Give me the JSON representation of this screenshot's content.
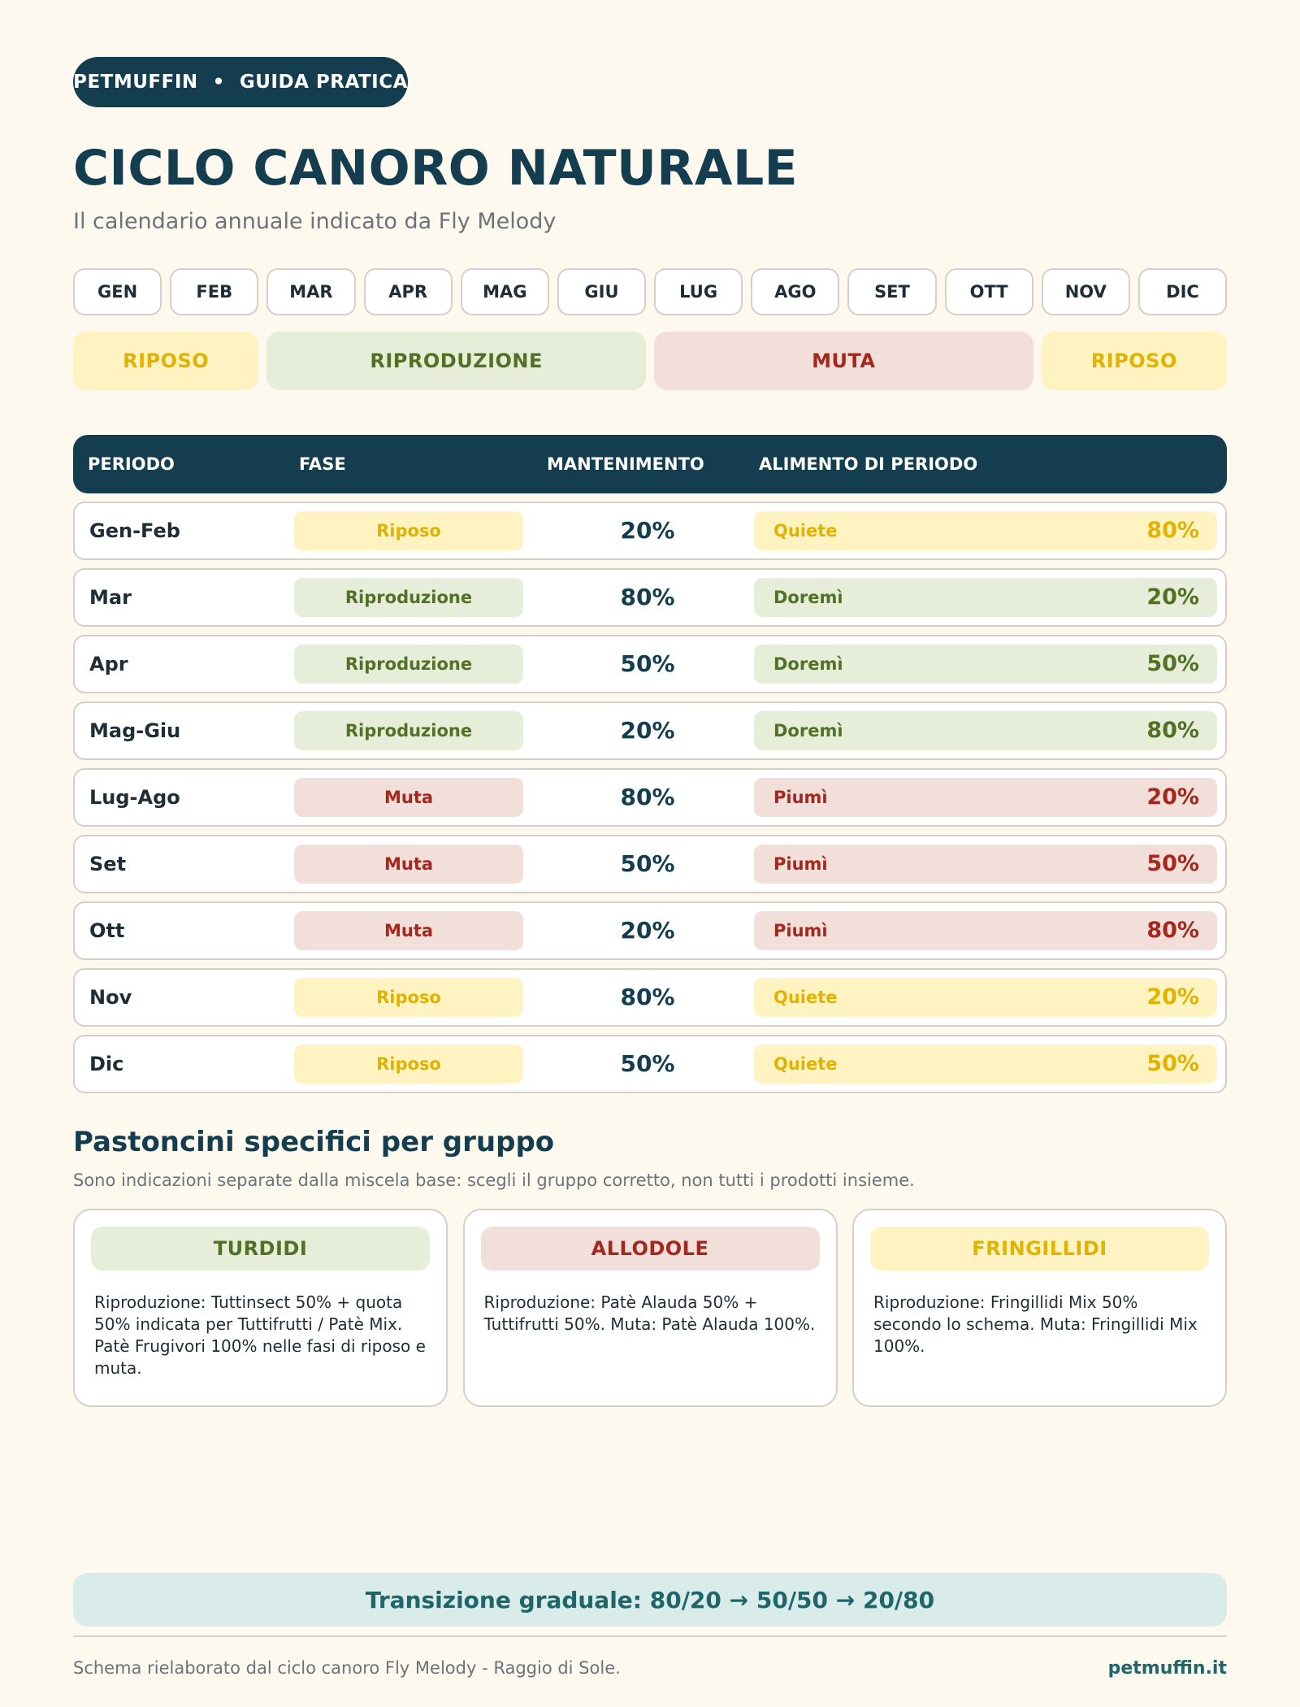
{
  "header": {
    "brand": "PETMUFFIN",
    "separator": "•",
    "guide": "GUIDA PRATICA",
    "title": "CICLO CANORO NATURALE",
    "subtitle": "Il calendario annuale indicato da Fly Melody"
  },
  "months": [
    "GEN",
    "FEB",
    "MAR",
    "APR",
    "MAG",
    "GIU",
    "LUG",
    "AGO",
    "SET",
    "OTT",
    "NOV",
    "DIC"
  ],
  "phases": [
    {
      "label": "RIPOSO",
      "tone": "yellow",
      "months": 2
    },
    {
      "label": "RIPRODUZIONE",
      "tone": "green",
      "months": 4
    },
    {
      "label": "MUTA",
      "tone": "red",
      "months": 4
    },
    {
      "label": "RIPOSO",
      "tone": "yellow",
      "months": 2
    }
  ],
  "colors": {
    "navy": "#153d50",
    "teal": "#1e6669",
    "background": "#fdf9ee",
    "yellow_bg": "#fff3c2",
    "yellow_fg": "#e2b200",
    "green_bg": "#e6eed9",
    "green_fg": "#517125",
    "red_bg": "#f2dfd9",
    "red_fg": "#a4281e"
  },
  "table": {
    "headers": {
      "period": "PERIODO",
      "phase": "FASE",
      "maintenance": "MANTENIMENTO",
      "food": "ALIMENTO DI PERIODO"
    },
    "rows": [
      {
        "period": "Gen-Feb",
        "phase": "Riposo",
        "tone": "yellow",
        "maintenance": "20%",
        "food": "Quiete",
        "food_pct": "80%"
      },
      {
        "period": "Mar",
        "phase": "Riproduzione",
        "tone": "green",
        "maintenance": "80%",
        "food": "Doremì",
        "food_pct": "20%"
      },
      {
        "period": "Apr",
        "phase": "Riproduzione",
        "tone": "green",
        "maintenance": "50%",
        "food": "Doremì",
        "food_pct": "50%"
      },
      {
        "period": "Mag-Giu",
        "phase": "Riproduzione",
        "tone": "green",
        "maintenance": "20%",
        "food": "Doremì",
        "food_pct": "80%"
      },
      {
        "period": "Lug-Ago",
        "phase": "Muta",
        "tone": "red",
        "maintenance": "80%",
        "food": "Piumì",
        "food_pct": "20%"
      },
      {
        "period": "Set",
        "phase": "Muta",
        "tone": "red",
        "maintenance": "50%",
        "food": "Piumì",
        "food_pct": "50%"
      },
      {
        "period": "Ott",
        "phase": "Muta",
        "tone": "red",
        "maintenance": "20%",
        "food": "Piumì",
        "food_pct": "80%"
      },
      {
        "period": "Nov",
        "phase": "Riposo",
        "tone": "yellow",
        "maintenance": "80%",
        "food": "Quiete",
        "food_pct": "20%"
      },
      {
        "period": "Dic",
        "phase": "Riposo",
        "tone": "yellow",
        "maintenance": "50%",
        "food": "Quiete",
        "food_pct": "50%"
      }
    ]
  },
  "groups": {
    "title": "Pastoncini specifici per gruppo",
    "subtitle": "Sono indicazioni separate dalla miscela base: scegli il gruppo corretto, non tutti i prodotti insieme.",
    "cards": [
      {
        "title": "TURDIDI",
        "tone": "green",
        "text": "Riproduzione: Tuttinsect 50% + quota 50% indicata per Tuttifrutti / Patè Mix. Patè Frugivori 100% nelle fasi di riposo e muta."
      },
      {
        "title": "ALLODOLE",
        "tone": "red",
        "text": "Riproduzione: Patè Alauda 50% + Tuttifrutti 50%. Muta: Patè Alauda 100%."
      },
      {
        "title": "FRINGILLIDI",
        "tone": "yellow",
        "text": "Riproduzione: Fringillidi Mix 50% secondo lo schema. Muta: Fringillidi Mix 100%."
      }
    ]
  },
  "transition": "Transizione graduale: 80/20 → 50/50 → 20/80",
  "footer": {
    "note": "Schema rielaborato dal ciclo canoro Fly Melody - Raggio di Sole.",
    "site": "petmuffin.it"
  }
}
